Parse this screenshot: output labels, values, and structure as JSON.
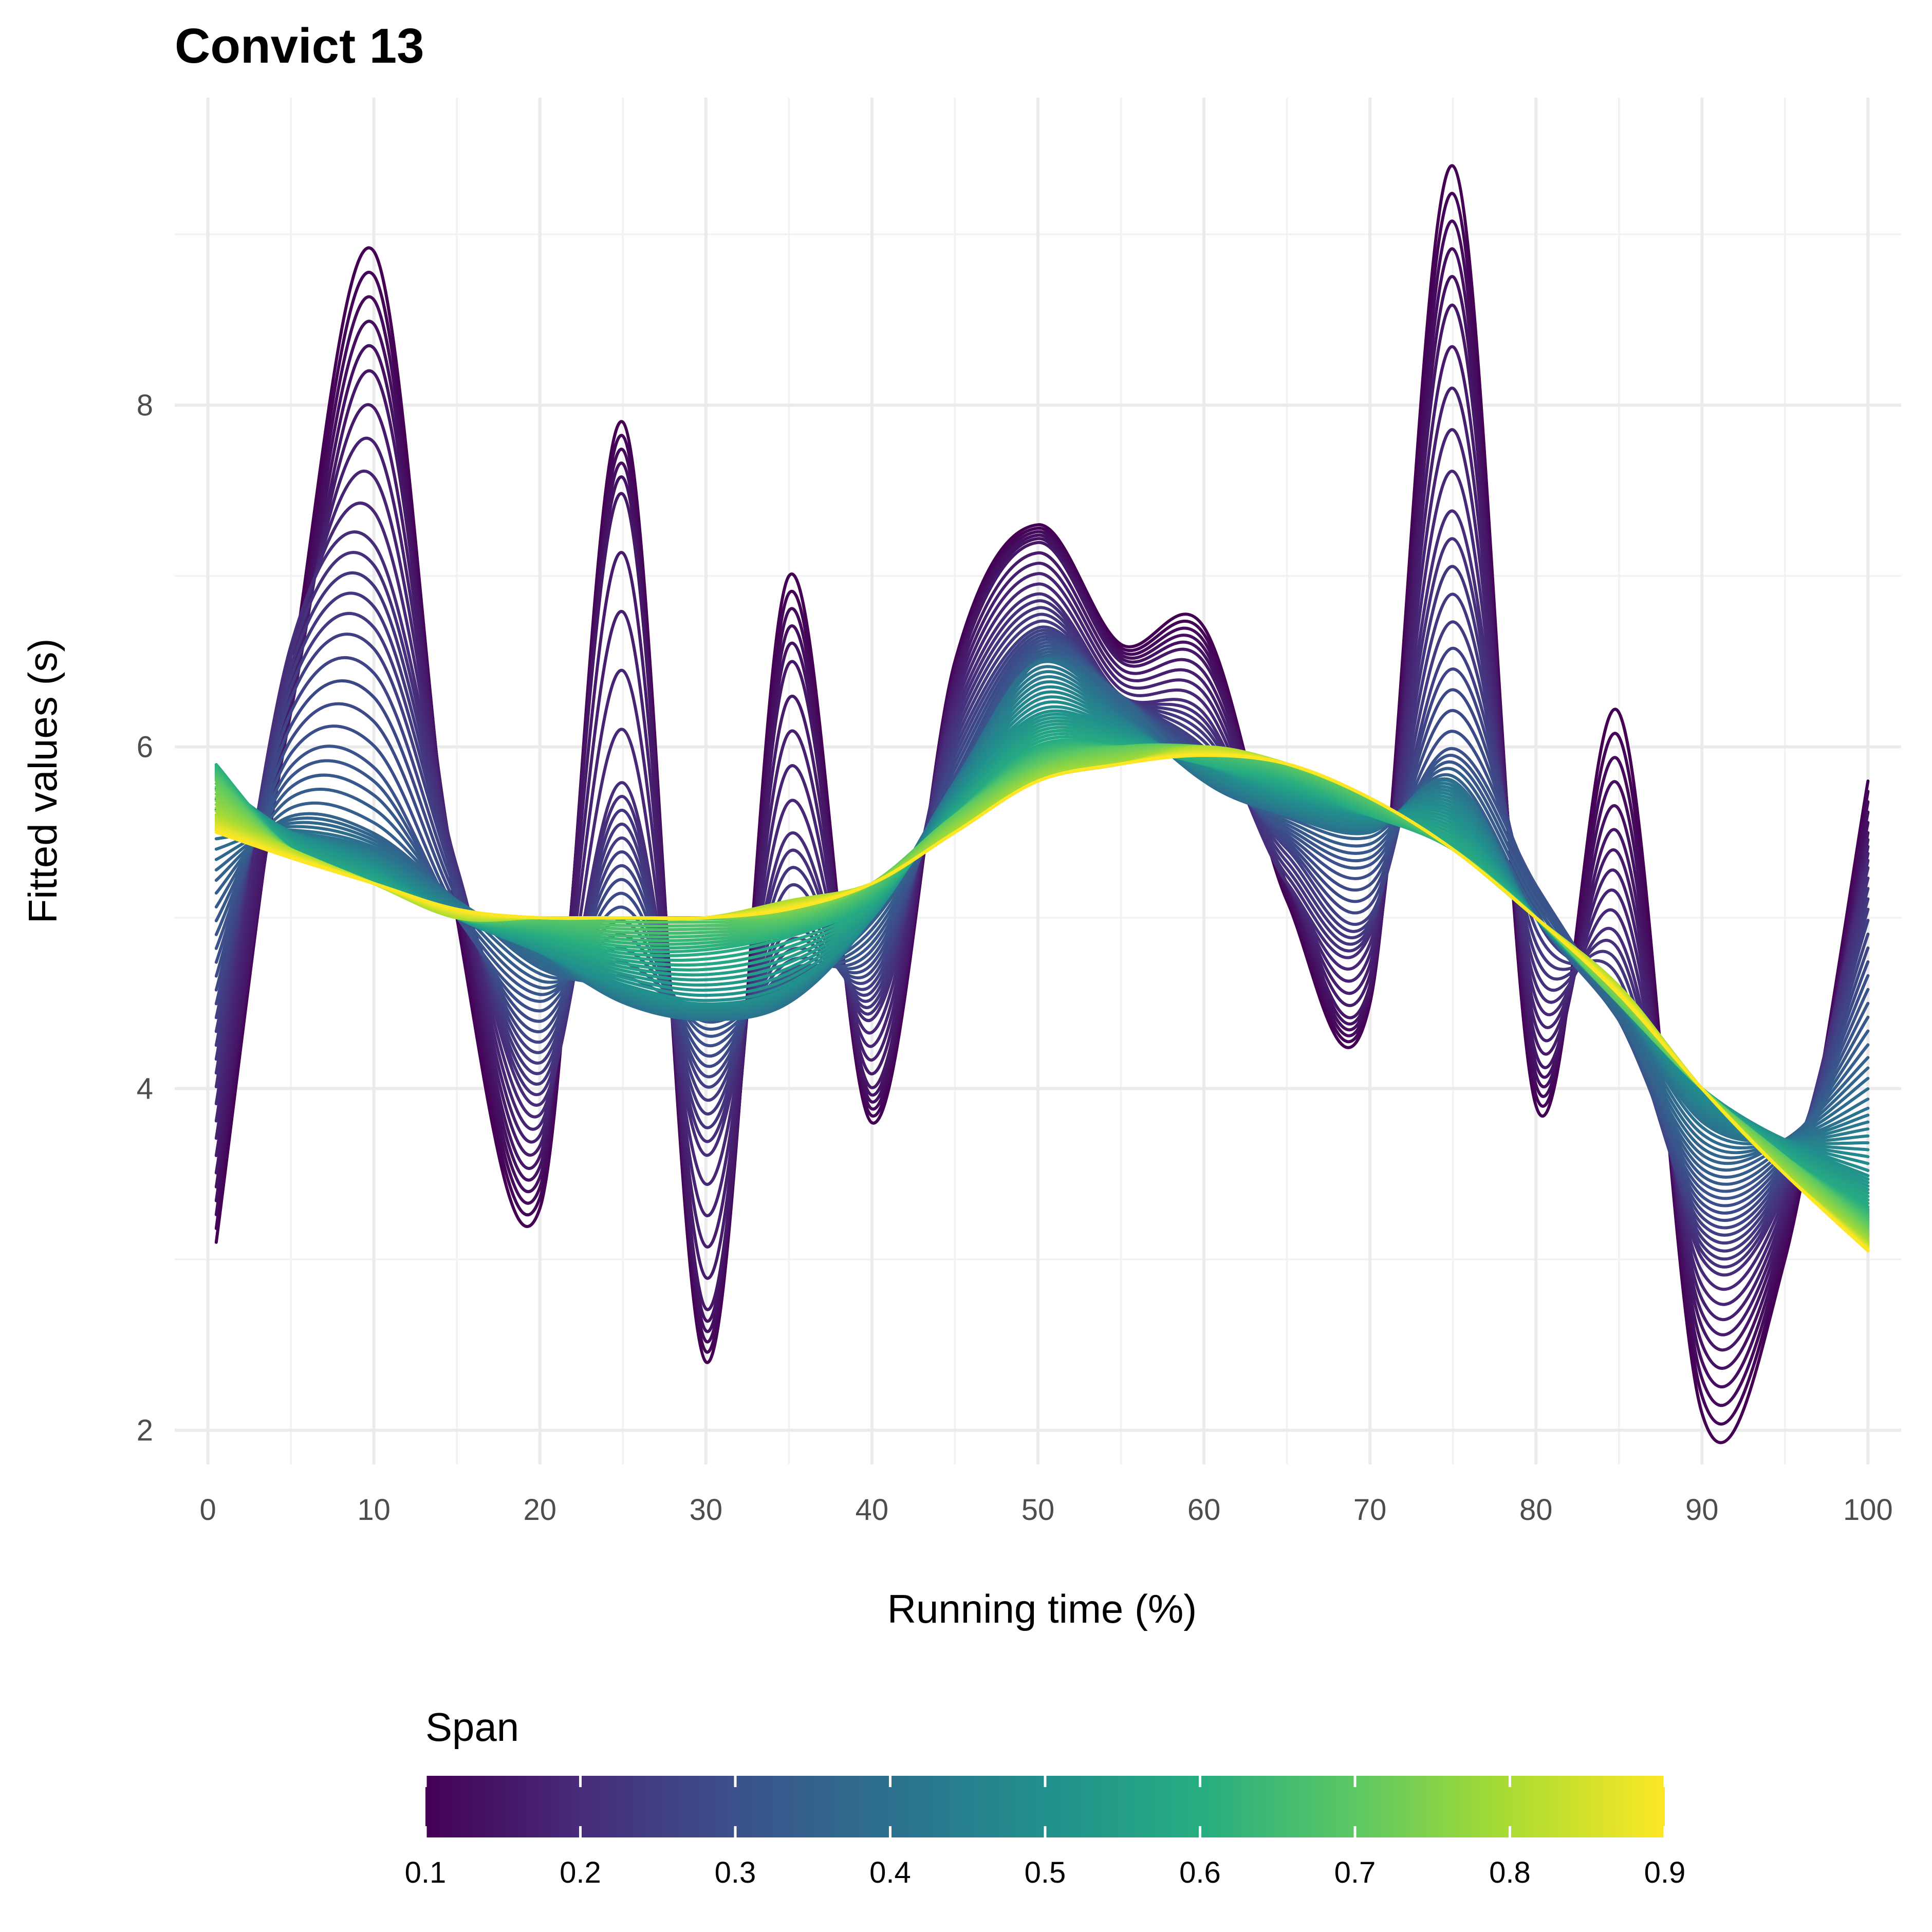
{
  "chart_data": {
    "type": "line",
    "title": "Convict 13",
    "xlabel": "Running time (%)",
    "ylabel": "Fitted values (s)",
    "xlim": [
      -2,
      102
    ],
    "ylim": [
      1.8,
      9.8
    ],
    "x_ticks": [
      "0",
      "10",
      "20",
      "30",
      "40",
      "50",
      "60",
      "70",
      "80",
      "90",
      "100"
    ],
    "y_ticks": [
      "2",
      "4",
      "6",
      "8"
    ],
    "grid": true,
    "legend": {
      "title": "Span",
      "placement": "bottom",
      "type": "colorbar",
      "range": [
        0.1,
        0.9
      ],
      "ticks": [
        "0.1",
        "0.2",
        "0.3",
        "0.4",
        "0.5",
        "0.6",
        "0.7",
        "0.8",
        "0.9"
      ],
      "palette": [
        "#440154",
        "#472c7a",
        "#3b518b",
        "#2c718e",
        "#21908d",
        "#27ad81",
        "#5cc863",
        "#aadc32",
        "#fde725"
      ]
    },
    "x": [
      0.5,
      5,
      10,
      15,
      20,
      25,
      30,
      35,
      40,
      45,
      50,
      55,
      60,
      65,
      70,
      75,
      80,
      85,
      90,
      95,
      100
    ],
    "series": [
      {
        "span": 0.1,
        "values": [
          3.1,
          6.4,
          8.9,
          5.0,
          3.3,
          7.9,
          2.4,
          7.0,
          3.8,
          6.5,
          7.3,
          6.6,
          6.7,
          5.1,
          4.5,
          9.4,
          3.9,
          6.2,
          2.1,
          3.0,
          5.8
        ]
      },
      {
        "span": 0.15,
        "values": [
          3.5,
          6.2,
          8.2,
          5.2,
          3.6,
          7.5,
          2.7,
          6.5,
          4.0,
          6.4,
          7.2,
          6.5,
          6.5,
          5.2,
          4.6,
          8.6,
          4.2,
          5.5,
          2.6,
          3.2,
          5.5
        ]
      },
      {
        "span": 0.2,
        "values": [
          4.0,
          6.6,
          7.2,
          5.3,
          3.9,
          5.8,
          3.6,
          5.5,
          4.4,
          6.2,
          6.9,
          6.3,
          6.2,
          5.2,
          4.9,
          7.4,
          4.6,
          4.9,
          3.0,
          3.4,
          5.3
        ]
      },
      {
        "span": 0.25,
        "values": [
          4.4,
          6.3,
          6.6,
          5.2,
          4.2,
          5.4,
          4.0,
          5.0,
          4.6,
          6.0,
          6.7,
          6.3,
          6.0,
          5.4,
          5.0,
          6.6,
          5.0,
          4.5,
          3.2,
          3.5,
          5.0
        ]
      },
      {
        "span": 0.3,
        "values": [
          4.8,
          5.9,
          5.9,
          5.0,
          4.5,
          5.0,
          4.3,
          4.7,
          4.8,
          5.8,
          6.6,
          6.3,
          5.9,
          5.5,
          5.3,
          6.0,
          5.2,
          4.4,
          3.4,
          3.6,
          4.6
        ]
      },
      {
        "span": 0.35,
        "values": [
          5.2,
          5.6,
          5.5,
          5.1,
          4.7,
          4.6,
          4.5,
          4.6,
          5.0,
          5.7,
          6.5,
          6.3,
          5.8,
          5.6,
          5.5,
          5.8,
          5.0,
          4.4,
          3.6,
          3.7,
          4.2
        ]
      },
      {
        "span": 0.4,
        "values": [
          5.5,
          5.5,
          5.4,
          5.1,
          4.8,
          4.5,
          4.4,
          4.5,
          5.0,
          5.8,
          6.5,
          6.2,
          5.8,
          5.6,
          5.5,
          5.8,
          5.0,
          4.5,
          3.8,
          3.7,
          3.9
        ]
      },
      {
        "span": 0.5,
        "values": [
          5.8,
          5.5,
          5.3,
          5.0,
          4.8,
          4.6,
          4.5,
          4.6,
          5.0,
          5.7,
          6.2,
          6.1,
          5.9,
          5.7,
          5.6,
          5.6,
          5.0,
          4.5,
          4.0,
          3.7,
          3.5
        ]
      },
      {
        "span": 0.6,
        "values": [
          5.9,
          5.4,
          5.2,
          5.0,
          4.9,
          4.8,
          4.8,
          4.9,
          5.1,
          5.6,
          6.0,
          6.0,
          5.9,
          5.8,
          5.6,
          5.4,
          5.0,
          4.5,
          4.0,
          3.6,
          3.3
        ]
      },
      {
        "span": 0.7,
        "values": [
          5.8,
          5.4,
          5.2,
          5.0,
          5.0,
          5.0,
          5.0,
          5.0,
          5.2,
          5.6,
          5.9,
          6.0,
          6.0,
          5.9,
          5.7,
          5.4,
          5.0,
          4.5,
          4.0,
          3.6,
          3.2
        ]
      },
      {
        "span": 0.8,
        "values": [
          5.6,
          5.4,
          5.2,
          5.0,
          5.0,
          5.0,
          5.0,
          5.1,
          5.2,
          5.5,
          5.8,
          5.9,
          6.0,
          5.9,
          5.7,
          5.4,
          5.0,
          4.6,
          4.0,
          3.5,
          3.1
        ]
      },
      {
        "span": 0.9,
        "values": [
          5.5,
          5.35,
          5.2,
          5.05,
          5.0,
          5.0,
          5.0,
          5.05,
          5.2,
          5.5,
          5.8,
          5.9,
          5.95,
          5.9,
          5.7,
          5.4,
          5.0,
          4.55,
          4.0,
          3.5,
          3.05
        ]
      }
    ]
  }
}
